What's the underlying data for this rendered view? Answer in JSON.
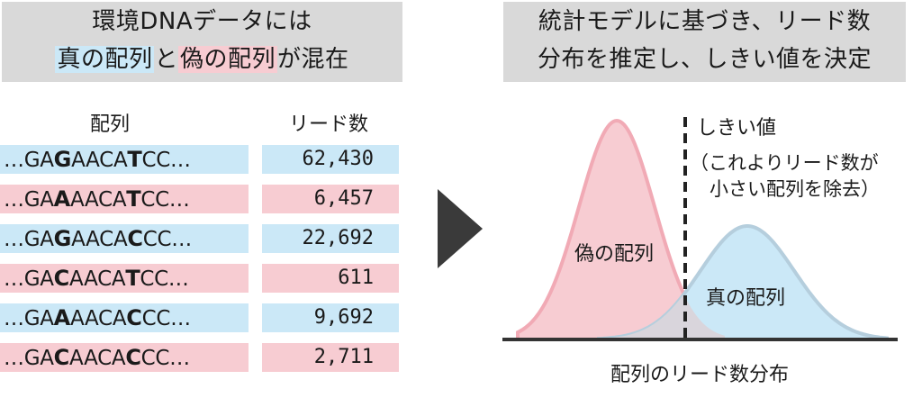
{
  "left_header": {
    "line1": "環境DNAデータには",
    "true_seq": "真の配列",
    "conj": "と",
    "false_seq": "偽の配列",
    "tail": "が混在"
  },
  "right_header": {
    "line1": "統計モデルに基づき、リード数",
    "line2": "分布を推定し、しきい値を決定"
  },
  "table": {
    "col_sequence": "配列",
    "col_reads": "リード数",
    "rows": [
      {
        "pre": "…GA",
        "v1": "G",
        "mid": "AACA",
        "v2": "T",
        "post": "CC…",
        "reads": "62,430",
        "type": "true",
        "color": "#cbe8f7"
      },
      {
        "pre": "…GA",
        "v1": "A",
        "mid": "AACA",
        "v2": "T",
        "post": "CC…",
        "reads": "6,457",
        "type": "false",
        "color": "#f7ccd2"
      },
      {
        "pre": "…GA",
        "v1": "G",
        "mid": "AACA",
        "v2": "C",
        "post": "CC…",
        "reads": "22,692",
        "type": "true",
        "color": "#cbe8f7"
      },
      {
        "pre": "…GA",
        "v1": "C",
        "mid": "AACA",
        "v2": "T",
        "post": "CC…",
        "reads": "611",
        "type": "false",
        "color": "#f7ccd2"
      },
      {
        "pre": "…GA",
        "v1": "A",
        "mid": "AACA",
        "v2": "C",
        "post": "CC…",
        "reads": "9,692",
        "type": "true",
        "color": "#cbe8f7"
      },
      {
        "pre": "…GA",
        "v1": "C",
        "mid": "AACA",
        "v2": "C",
        "post": "CC…",
        "reads": "2,711",
        "type": "false",
        "color": "#f7ccd2"
      }
    ]
  },
  "diagram": {
    "threshold_label": "しきい値",
    "threshold_note_line1": "（これよりリード数が",
    "threshold_note_line2": "小さい配列を除去）",
    "false_label": "偽の配列",
    "true_label": "真の配列",
    "x_axis_label": "配列のリード数分布",
    "colors": {
      "false_fill": "#f7ccd2",
      "false_stroke": "#f1aab5",
      "true_fill": "#cbe8f7",
      "true_stroke": "#b5cedd",
      "overlap": "#d9d5dc",
      "axis": "#333333",
      "arrow": "#3a3a3a"
    }
  }
}
